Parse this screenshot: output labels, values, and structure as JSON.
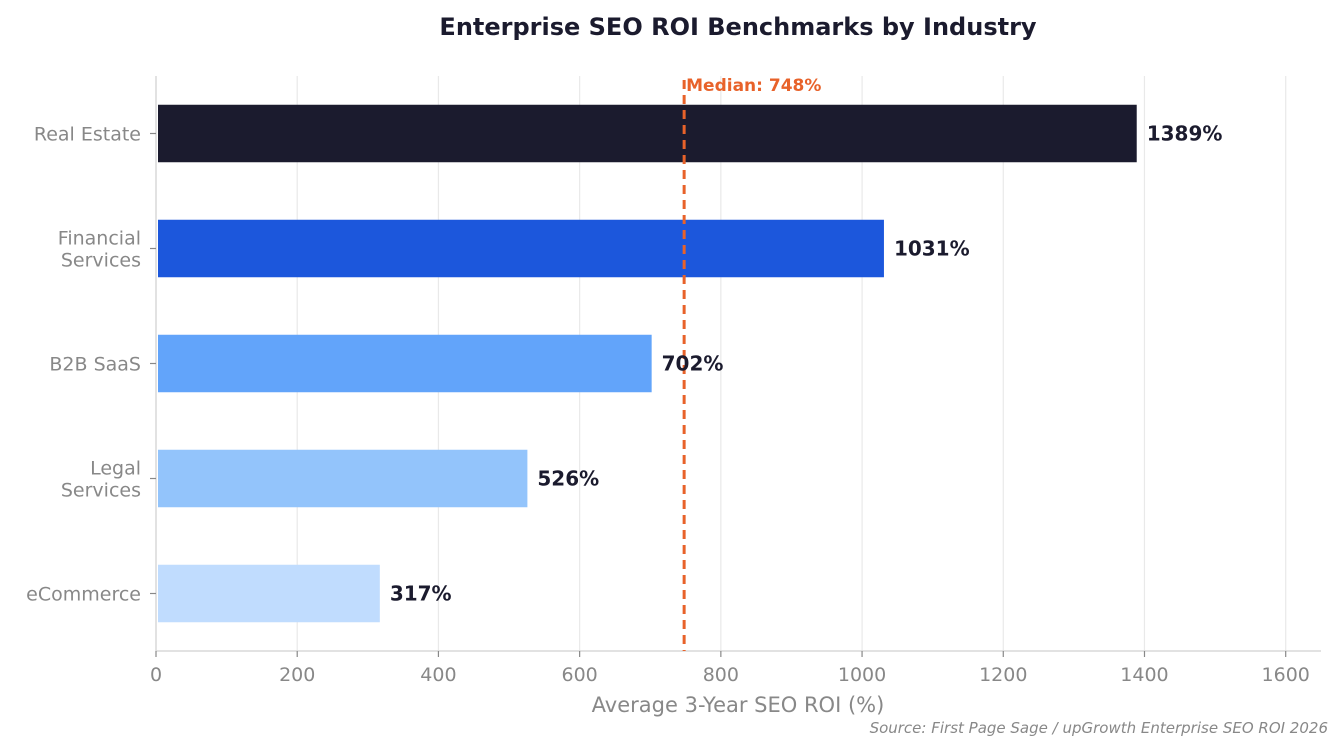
{
  "chart_data": {
    "type": "bar",
    "orientation": "horizontal",
    "title": "Enterprise SEO ROI Benchmarks by Industry",
    "xlabel": "Average 3-Year SEO ROI (%)",
    "ylabel": "",
    "xlim": [
      0,
      1650
    ],
    "xticks": [
      "0",
      "200",
      "400",
      "600",
      "800",
      "1000",
      "1200",
      "1400",
      "1600"
    ],
    "xtick_values": [
      0,
      200,
      400,
      600,
      800,
      1000,
      1200,
      1400,
      1600
    ],
    "grid": "vertical",
    "categories": [
      [
        "Real Estate"
      ],
      [
        "Financial",
        "Services"
      ],
      [
        "B2B SaaS"
      ],
      [
        "Legal",
        "Services"
      ],
      [
        "eCommerce"
      ]
    ],
    "values": [
      1389,
      1031,
      702,
      526,
      317
    ],
    "data_labels": [
      "1389%",
      "1031%",
      "702%",
      "526%",
      "317%"
    ],
    "colors": [
      "#1b1b2e",
      "#1c57dc",
      "#62a4fa",
      "#93c4fb",
      "#c0dcfe"
    ],
    "median": {
      "value": 748,
      "label": "Median: 748%",
      "color": "#e8622a"
    },
    "source": "Source: First Page Sage / upGrowth Enterprise SEO ROI 2026"
  }
}
